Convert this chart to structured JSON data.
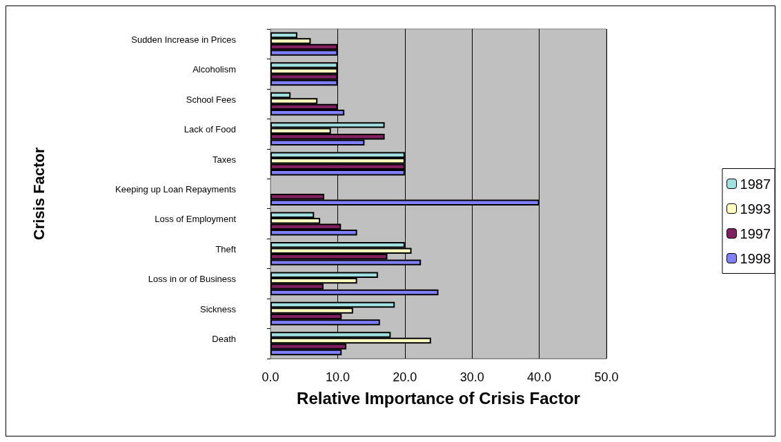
{
  "chart_data": {
    "type": "bar",
    "orientation": "horizontal",
    "xlabel": "Relative Importance of Crisis Factor",
    "ylabel": "Crisis Factor",
    "categories": [
      "Sudden Increase in Prices",
      "Alcoholism",
      "School Fees",
      "Lack of Food",
      "Taxes",
      "Keeping up Loan Repayments",
      "Loss of Employment",
      "Theft",
      "Loss in or of Business",
      "Sickness",
      "Death"
    ],
    "series": [
      {
        "name": "1987",
        "color": "#9fe0e0",
        "values": [
          4.0,
          10.0,
          3.0,
          17.0,
          20.0,
          null,
          6.5,
          20.0,
          16.0,
          18.5,
          17.9
        ]
      },
      {
        "name": "1993",
        "color": "#ffffc0",
        "values": [
          6.0,
          10.0,
          7.0,
          9.0,
          20.0,
          null,
          7.4,
          21.0,
          12.9,
          12.3,
          23.9
        ]
      },
      {
        "name": "1997",
        "color": "#802060",
        "values": [
          10.0,
          10.0,
          10.0,
          17.0,
          20.0,
          8.0,
          10.5,
          17.4,
          7.9,
          10.6,
          11.3
        ]
      },
      {
        "name": "1998",
        "color": "#8080ff",
        "values": [
          10.0,
          10.0,
          11.0,
          14.0,
          20.0,
          40.0,
          12.9,
          22.4,
          25.0,
          16.3,
          10.6
        ]
      }
    ],
    "xlim": [
      0,
      50
    ],
    "xticks": [
      {
        "value": 0,
        "label": "0.0"
      },
      {
        "value": 10,
        "label": "10.0"
      },
      {
        "value": 20,
        "label": "20.0"
      },
      {
        "value": 30,
        "label": "30.0"
      },
      {
        "value": 40,
        "label": "40.0"
      },
      {
        "value": 50,
        "label": "50.0"
      }
    ],
    "grid": "x",
    "legend": "right"
  }
}
